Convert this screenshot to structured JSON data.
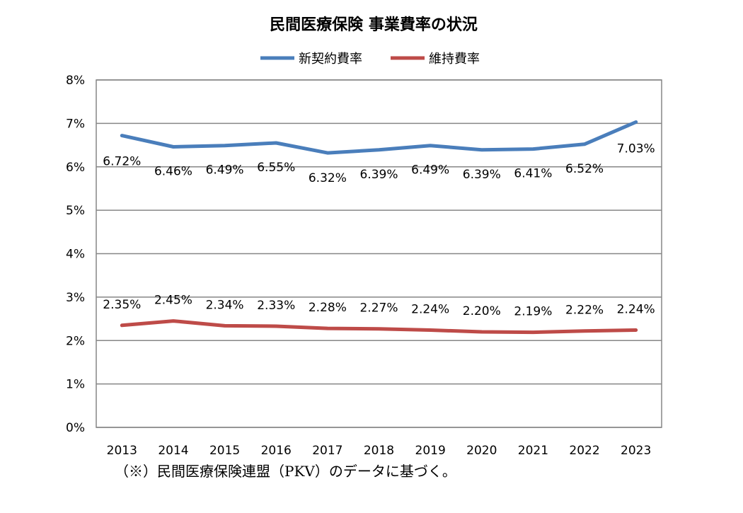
{
  "chart_data": {
    "type": "line",
    "title": "民間医療保険 事業費率の状況",
    "categories": [
      "2013",
      "2014",
      "2015",
      "2016",
      "2017",
      "2018",
      "2019",
      "2020",
      "2021",
      "2022",
      "2023"
    ],
    "series": [
      {
        "name": "新契約費率",
        "color": "#4a7ebb",
        "values": [
          6.72,
          6.46,
          6.49,
          6.55,
          6.32,
          6.39,
          6.49,
          6.39,
          6.41,
          6.52,
          7.03
        ],
        "labels": [
          "6.72%",
          "6.46%",
          "6.49%",
          "6.55%",
          "6.32%",
          "6.39%",
          "6.49%",
          "6.39%",
          "6.41%",
          "6.52%",
          "7.03%"
        ]
      },
      {
        "name": "維持費率",
        "color": "#be4b48",
        "values": [
          2.35,
          2.45,
          2.34,
          2.33,
          2.28,
          2.27,
          2.24,
          2.2,
          2.19,
          2.22,
          2.24
        ],
        "labels": [
          "2.35%",
          "2.45%",
          "2.34%",
          "2.33%",
          "2.28%",
          "2.27%",
          "2.24%",
          "2.20%",
          "2.19%",
          "2.22%",
          "2.24%"
        ]
      }
    ],
    "ylim": [
      0,
      8
    ],
    "yticks": [
      0,
      1,
      2,
      3,
      4,
      5,
      6,
      7,
      8
    ],
    "ytick_labels": [
      "0%",
      "1%",
      "2%",
      "3%",
      "4%",
      "5%",
      "6%",
      "7%",
      "8%"
    ],
    "grid": true,
    "legend_position": "top-center",
    "xlabel": "",
    "ylabel": ""
  },
  "footnote": "（※）民間医療保険連盟（PKV）のデータに基づく。"
}
